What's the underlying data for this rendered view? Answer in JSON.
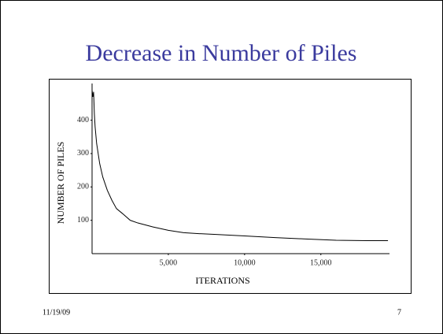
{
  "chart_data": {
    "type": "line",
    "title": "Decrease in Number of Piles",
    "xlabel": "ITERATIONS",
    "ylabel": "NUMBER OF PILES",
    "x": [
      0,
      50,
      100,
      150,
      200,
      300,
      500,
      700,
      1000,
      1300,
      1600,
      2000,
      2500,
      3000,
      4000,
      5000,
      6000,
      7000,
      8000,
      10000,
      12000,
      14000,
      16000,
      18000,
      19400
    ],
    "values": [
      490,
      470,
      485,
      420,
      380,
      330,
      270,
      230,
      190,
      160,
      135,
      120,
      100,
      92,
      80,
      70,
      63,
      60,
      58,
      53,
      48,
      44,
      40,
      39,
      39
    ],
    "color": "#000000",
    "xlim": [
      0,
      19500
    ],
    "ylim": [
      0,
      510
    ],
    "xticks": [
      {
        "value": 5000,
        "label": "5,000"
      },
      {
        "value": 10000,
        "label": "10,000"
      },
      {
        "value": 15000,
        "label": "15,000"
      }
    ],
    "yticks": [
      100,
      200,
      300,
      400
    ]
  },
  "footer": {
    "date": "11/19/09",
    "page": "7"
  }
}
